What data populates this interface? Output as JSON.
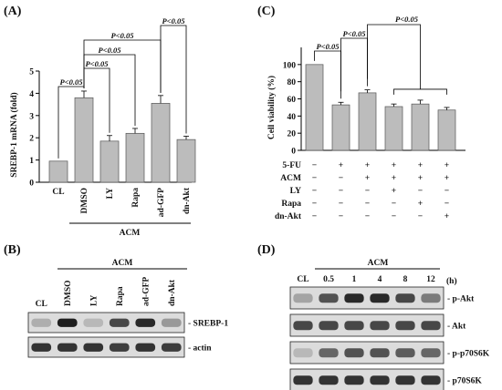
{
  "panels": {
    "a": "(A)",
    "b": "(B)",
    "c": "(C)",
    "d": "(D)"
  },
  "chart_data": [
    {
      "type": "bar",
      "ylabel": "SREBP-1 mRNA (fold)",
      "ylim": [
        0,
        5
      ],
      "yticks": [
        "0",
        "1",
        "2",
        "3",
        "4",
        "5"
      ],
      "categories": [
        "CL",
        "DMSO",
        "LY",
        "Rapa",
        "ad-GFP",
        "dn-Akt"
      ],
      "values": [
        0.95,
        3.8,
        1.85,
        2.2,
        3.55,
        1.92
      ],
      "errors": [
        0.0,
        0.3,
        0.25,
        0.22,
        0.35,
        0.15
      ],
      "group_label": "ACM",
      "group_members": [
        "DMSO",
        "LY",
        "Rapa",
        "ad-GFP",
        "dn-Akt"
      ],
      "significance": [
        "P<0.05",
        "P<0.05",
        "P<0.05",
        "P<0.05",
        "P<0.05"
      ]
    },
    {
      "type": "bar",
      "ylabel": "Cell viability (%)",
      "ylim": [
        0,
        120
      ],
      "yticks": [
        "0",
        "20",
        "40",
        "60",
        "80",
        "100"
      ],
      "values": [
        100,
        53,
        67,
        51,
        54,
        47
      ],
      "errors": [
        0,
        3,
        3.5,
        3,
        4.5,
        3
      ],
      "significance": [
        "P<0.05",
        "P<0.05",
        "P<0.05"
      ],
      "conditions": [
        {
          "label": "5-FU",
          "signs": [
            "−",
            "+",
            "+",
            "+",
            "+",
            "+"
          ]
        },
        {
          "label": "ACM",
          "signs": [
            "−",
            "−",
            "+",
            "+",
            "+",
            "+"
          ]
        },
        {
          "label": "LY",
          "signs": [
            "−",
            "−",
            "−",
            "+",
            "−",
            "−"
          ]
        },
        {
          "label": "Rapa",
          "signs": [
            "−",
            "−",
            "−",
            "−",
            "+",
            "−"
          ]
        },
        {
          "label": "dn-Akt",
          "signs": [
            "−",
            "−",
            "−",
            "−",
            "−",
            "+"
          ]
        }
      ]
    }
  ],
  "blot_b": {
    "group_label": "ACM",
    "lanes": [
      "CL",
      "DMSO",
      "LY",
      "Rapa",
      "ad-GFP",
      "dn-Akt"
    ],
    "rows": [
      {
        "label": "- SREBP-1",
        "intensity": [
          0.25,
          0.95,
          0.2,
          0.75,
          0.9,
          0.35
        ]
      },
      {
        "label": "- actin",
        "intensity": [
          0.85,
          0.85,
          0.85,
          0.8,
          0.85,
          0.8
        ]
      }
    ]
  },
  "blot_d": {
    "group_label": "ACM",
    "unit": "(h)",
    "lanes": [
      "CL",
      "0.5",
      "1",
      "4",
      "8",
      "12"
    ],
    "rows": [
      {
        "label": "- p-Akt",
        "intensity": [
          0.3,
          0.7,
          0.9,
          0.9,
          0.75,
          0.5
        ]
      },
      {
        "label": "- Akt",
        "intensity": [
          0.75,
          0.75,
          0.75,
          0.75,
          0.75,
          0.75
        ]
      },
      {
        "label": "- p-p70S6K",
        "intensity": [
          0.2,
          0.6,
          0.7,
          0.7,
          0.65,
          0.6
        ]
      },
      {
        "label": "- p70S6K",
        "intensity": [
          0.85,
          0.85,
          0.85,
          0.85,
          0.85,
          0.85
        ]
      }
    ]
  }
}
